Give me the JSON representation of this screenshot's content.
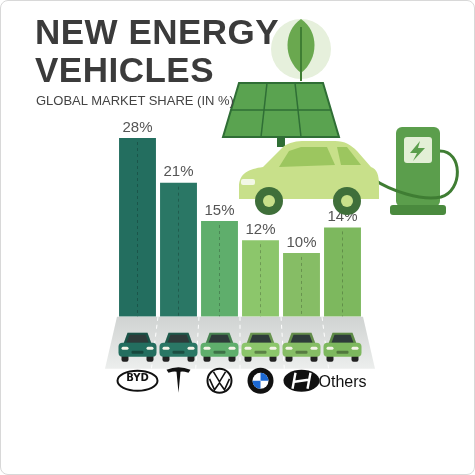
{
  "chart_data": {
    "type": "bar",
    "title": "NEW ENERGY VEHICLES",
    "subtitle": "GLOBAL MARKET SHARE (IN %)",
    "categories": [
      "BYD",
      null,
      null,
      null,
      null,
      "Others"
    ],
    "values": [
      28,
      21,
      15,
      12,
      10,
      14
    ],
    "value_labels": [
      "28%",
      "21%",
      "15%",
      "12%",
      "10%",
      "14%"
    ],
    "colors": [
      "#236e5f",
      "#2a7765",
      "#5fae6c",
      "#8cc66b",
      "#86bd65",
      "#7db85e"
    ],
    "ylim": [
      0,
      28
    ],
    "grid": false,
    "data_labels": true,
    "tick_labels": "x"
  }
}
